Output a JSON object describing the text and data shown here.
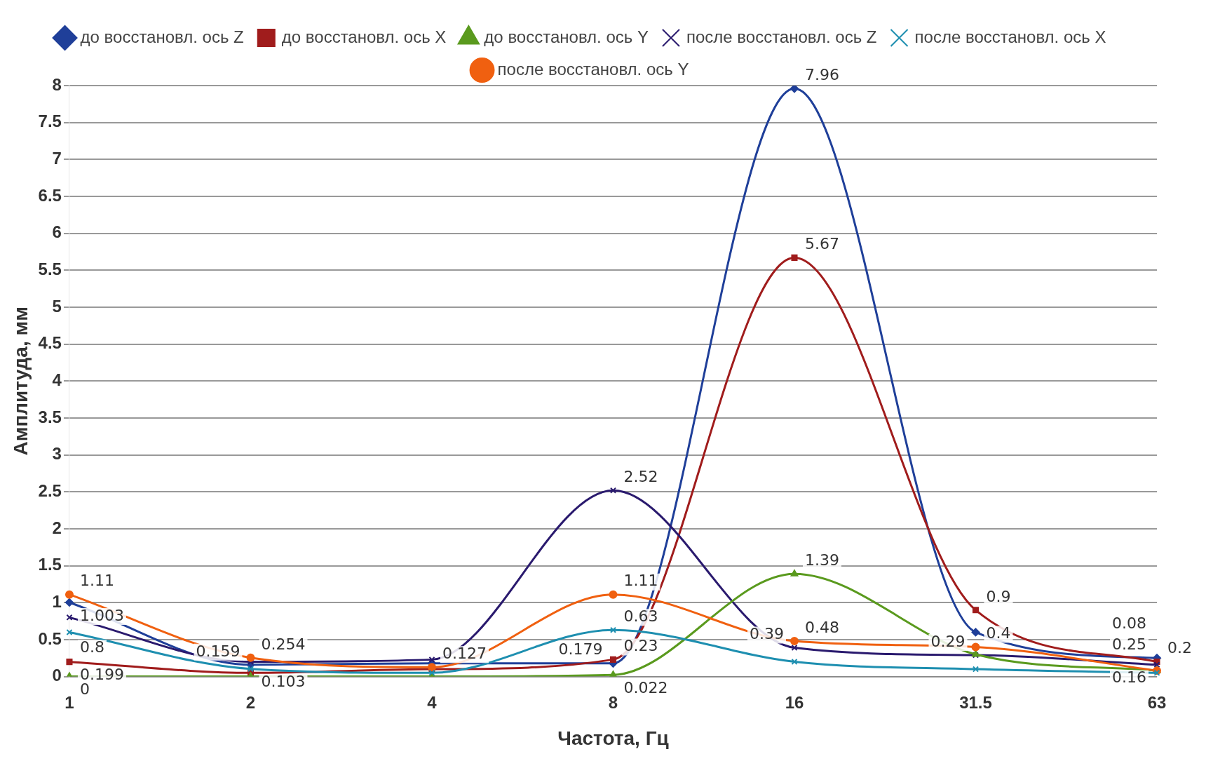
{
  "chart_data": {
    "type": "line",
    "xlabel": "Частота, Гц",
    "ylabel": "Амплитуда, мм",
    "categories": [
      "1",
      "2",
      "4",
      "8",
      "16",
      "31.5",
      "63"
    ],
    "ylim": [
      0,
      8
    ],
    "yticks": [
      0,
      0.5,
      1,
      1.5,
      2,
      2.5,
      3,
      3.5,
      4,
      4.5,
      5,
      5.5,
      6,
      6.5,
      7,
      7.5,
      8
    ],
    "grid": "y",
    "legend": "top",
    "series": [
      {
        "name": "до восстановл. ось Z",
        "color": "#1f3f99",
        "marker": "diamond",
        "values": [
          1.003,
          0.159,
          0.18,
          0.179,
          7.96,
          0.6,
          0.25
        ],
        "value_labels": [
          "1.003",
          "0.159",
          null,
          "0.179",
          "7.96",
          null,
          "0.25"
        ]
      },
      {
        "name": "до восстановл. ось X",
        "color": "#a01c1c",
        "marker": "square",
        "values": [
          0.199,
          0.05,
          0.1,
          0.23,
          5.67,
          0.9,
          0.2
        ],
        "value_labels": [
          "0.199",
          null,
          null,
          "0.23",
          "5.67",
          "0.9",
          "0.2"
        ]
      },
      {
        "name": "до восстановл. ось Y",
        "color": "#5a9a1e",
        "marker": "triangle",
        "values": [
          0,
          0,
          0,
          0.022,
          1.39,
          0.3,
          0.08
        ],
        "value_labels": [
          "0",
          null,
          null,
          "0.022",
          "1.39",
          null,
          "0.08"
        ]
      },
      {
        "name": "после восстановл. ось Z",
        "color": "#2a1a6e",
        "marker": "cross",
        "values": [
          0.8,
          0.2,
          0.23,
          2.52,
          0.39,
          0.29,
          0.16
        ],
        "value_labels": [
          "0.8",
          null,
          null,
          "2.52",
          "0.39",
          "0.29",
          "0.16"
        ]
      },
      {
        "name": "после восстановл. ось X",
        "color": "#1e8fb0",
        "marker": "cross",
        "values": [
          0.6,
          0.103,
          0.05,
          0.63,
          0.2,
          0.1,
          0.05
        ],
        "value_labels": [
          null,
          "0.103",
          null,
          "0.63",
          null,
          null,
          null
        ]
      },
      {
        "name": "после восстановл. ось Y",
        "color": "#f06010",
        "marker": "circle",
        "values": [
          1.11,
          0.254,
          0.127,
          1.11,
          0.48,
          0.4,
          0.08
        ],
        "value_labels": [
          "1.11",
          "0.254",
          "0.127",
          "1.11",
          "0.48",
          "0.4",
          null
        ]
      }
    ]
  }
}
